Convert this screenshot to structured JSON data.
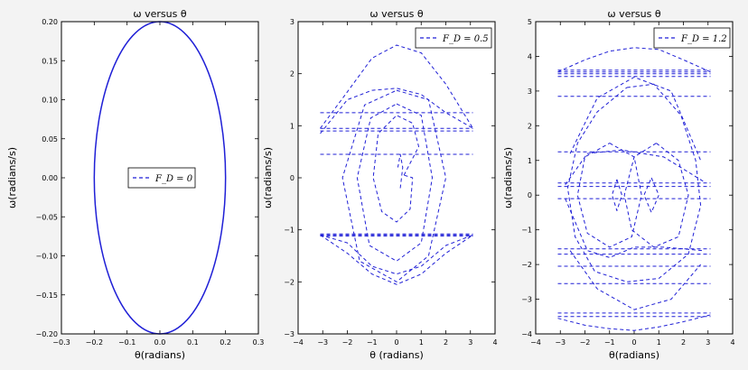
{
  "chart_data": [
    {
      "type": "line",
      "title": "ω versus θ",
      "xlabel": "θ(radians)",
      "ylabel": "ω(radians/s)",
      "xlim": [
        -0.3,
        0.3
      ],
      "ylim": [
        -0.2,
        0.2
      ],
      "xticks": [
        -0.3,
        -0.2,
        -0.1,
        0.0,
        0.1,
        0.2,
        0.3
      ],
      "xtick_labels": [
        "−0.3",
        "−0.2",
        "−0.1",
        "0.0",
        "0.1",
        "0.2",
        "0.3"
      ],
      "yticks": [
        -0.2,
        -0.15,
        -0.1,
        -0.05,
        0.0,
        0.05,
        0.1,
        0.15,
        0.2
      ],
      "ytick_labels": [
        "−0.20",
        "−0.15",
        "−0.10",
        "−0.05",
        "0.00",
        "0.05",
        "0.10",
        "0.15",
        "0.20"
      ],
      "legend": "F_D = 0",
      "legend_position": "center",
      "series": [
        {
          "name": "F_D = 0",
          "style": "solid",
          "shape": "ellipse",
          "x_amplitude": 0.2,
          "y_amplitude": 0.2
        }
      ]
    },
    {
      "type": "line",
      "title": "ω versus θ",
      "xlabel": "θ (radians)",
      "ylabel": "ω(radians/s)",
      "xlim": [
        -4,
        4
      ],
      "ylim": [
        -3,
        3
      ],
      "xticks": [
        -4,
        -3,
        -2,
        -1,
        0,
        1,
        2,
        3,
        4
      ],
      "xtick_labels": [
        "−4",
        "−3",
        "−2",
        "−1",
        "0",
        "1",
        "2",
        "3",
        "4"
      ],
      "yticks": [
        -3,
        -2,
        -1,
        0,
        1,
        2,
        3
      ],
      "ytick_labels": [
        "−3",
        "−2",
        "−1",
        "0",
        "1",
        "2",
        "3"
      ],
      "legend": "F_D = 0.5",
      "legend_position": "top-right",
      "series": [
        {
          "name": "F_D = 0.5",
          "style": "dashed",
          "segments": [
            [
              [
                0.15,
                -0.2
              ],
              [
                0.25,
                0.2
              ],
              [
                0.15,
                0.45
              ],
              [
                0.05,
                0.2
              ]
            ],
            [
              [
                0.3,
                0.05
              ],
              [
                0.9,
                0.6
              ],
              [
                0.65,
                1.05
              ],
              [
                0,
                1.2
              ],
              [
                -0.75,
                0.85
              ],
              [
                -0.95,
                0
              ],
              [
                -0.6,
                -0.65
              ],
              [
                0,
                -0.85
              ],
              [
                0.55,
                -0.6
              ],
              [
                0.65,
                0
              ],
              [
                0.3,
                0.05
              ]
            ],
            [
              [
                0,
                1.42
              ],
              [
                1,
                1.2
              ],
              [
                1.45,
                0
              ],
              [
                1.0,
                -1.25
              ],
              [
                0,
                -1.6
              ],
              [
                -1.1,
                -1.3
              ],
              [
                -1.6,
                0
              ],
              [
                -1.05,
                1.15
              ],
              [
                0,
                1.42
              ]
            ],
            [
              [
                0,
                1.68
              ],
              [
                1.3,
                1.5
              ],
              [
                2,
                0
              ],
              [
                1.3,
                -1.5
              ],
              [
                0,
                -2.0
              ],
              [
                -1.5,
                -1.6
              ],
              [
                -2.2,
                0
              ],
              [
                -1.3,
                1.4
              ],
              [
                0,
                1.68
              ]
            ],
            [
              [
                -3.1,
                0.85
              ],
              [
                -2,
                1.5
              ],
              [
                -1,
                1.68
              ],
              [
                0,
                1.72
              ],
              [
                1,
                1.6
              ],
              [
                2,
                1.25
              ],
              [
                3.1,
                0.95
              ]
            ],
            [
              [
                -3.1,
                0.95
              ],
              [
                -2,
                1.65
              ],
              [
                -1,
                2.3
              ],
              [
                0,
                2.55
              ],
              [
                1,
                2.4
              ],
              [
                2,
                1.8
              ],
              [
                3.1,
                0.95
              ]
            ],
            [
              [
                -3.1,
                -1.1
              ],
              [
                -2,
                -1.45
              ],
              [
                -1,
                -1.85
              ],
              [
                0,
                -2.05
              ],
              [
                1,
                -1.85
              ],
              [
                2,
                -1.45
              ],
              [
                3.1,
                -1.1
              ]
            ],
            [
              [
                -3.1,
                -1.1
              ],
              [
                -2,
                -1.25
              ],
              [
                -1,
                -1.7
              ],
              [
                0,
                -1.85
              ],
              [
                1,
                -1.7
              ],
              [
                2,
                -1.3
              ],
              [
                3.1,
                -1.1
              ]
            ],
            [
              [
                -3.1,
                1.25
              ],
              [
                3.1,
                1.25
              ]
            ],
            [
              [
                -3.1,
                0.95
              ],
              [
                3.1,
                0.95
              ]
            ],
            [
              [
                -3.1,
                0.9
              ],
              [
                3.1,
                0.9
              ]
            ],
            [
              [
                -3.1,
                0.45
              ],
              [
                3.1,
                0.45
              ]
            ],
            [
              [
                -3.1,
                -1.08
              ],
              [
                3.1,
                -1.08
              ]
            ],
            [
              [
                -3.1,
                -1.1
              ],
              [
                3.1,
                -1.1
              ]
            ],
            [
              [
                -3.1,
                -1.12
              ],
              [
                3.1,
                -1.12
              ]
            ]
          ]
        }
      ]
    },
    {
      "type": "line",
      "title": "ω versus θ",
      "xlabel": "θ(radians)",
      "ylabel": "ω(radians/s)",
      "xlim": [
        -4,
        4
      ],
      "ylim": [
        -4,
        5
      ],
      "xticks": [
        -4,
        -3,
        -2,
        -1,
        0,
        1,
        2,
        3,
        4
      ],
      "xtick_labels": [
        "−4",
        "−3",
        "−2",
        "−1",
        "0",
        "1",
        "2",
        "3",
        "4"
      ],
      "yticks": [
        -4,
        -3,
        -2,
        -1,
        0,
        1,
        2,
        3,
        4,
        5
      ],
      "ytick_labels": [
        "−4",
        "−3",
        "−2",
        "−1",
        "0",
        "1",
        "2",
        "3",
        "4",
        "5"
      ],
      "legend": "F_D = 1.2",
      "legend_position": "top-right",
      "series": [
        {
          "name": "F_D = 1.2",
          "style": "dashed",
          "segments": [
            [
              [
                -3.1,
                3.55
              ],
              [
                -2,
                3.9
              ],
              [
                -1,
                4.15
              ],
              [
                0,
                4.25
              ],
              [
                1,
                4.2
              ],
              [
                2,
                3.9
              ],
              [
                3.1,
                3.55
              ]
            ],
            [
              [
                -3.1,
                3.5
              ],
              [
                3.1,
                3.5
              ]
            ],
            [
              [
                -3.1,
                3.55
              ],
              [
                3.1,
                3.55
              ]
            ],
            [
              [
                -3.1,
                3.6
              ],
              [
                3.1,
                3.6
              ]
            ],
            [
              [
                -3.1,
                3.42
              ],
              [
                3.1,
                3.42
              ]
            ],
            [
              [
                -3.1,
                2.85
              ],
              [
                3.1,
                2.85
              ]
            ],
            [
              [
                -3.1,
                1.25
              ],
              [
                3.1,
                1.25
              ]
            ],
            [
              [
                -3.1,
                0.35
              ],
              [
                3.1,
                0.35
              ]
            ],
            [
              [
                -3.1,
                0.25
              ],
              [
                3.1,
                0.25
              ]
            ],
            [
              [
                -3.1,
                -0.1
              ],
              [
                3.1,
                -0.1
              ]
            ],
            [
              [
                -3.1,
                -1.55
              ],
              [
                3.1,
                -1.55
              ]
            ],
            [
              [
                -3.1,
                -1.7
              ],
              [
                3.1,
                -1.7
              ]
            ],
            [
              [
                -3.1,
                -2.05
              ],
              [
                3.1,
                -2.05
              ]
            ],
            [
              [
                -3.1,
                -2.55
              ],
              [
                3.1,
                -2.55
              ]
            ],
            [
              [
                -3.1,
                -3.4
              ],
              [
                3.1,
                -3.4
              ]
            ],
            [
              [
                -3.1,
                -3.5
              ],
              [
                3.1,
                -3.5
              ]
            ],
            [
              [
                -3.1,
                -3.55
              ],
              [
                -2,
                -3.75
              ],
              [
                -1,
                -3.85
              ],
              [
                0,
                -3.9
              ],
              [
                1,
                -3.8
              ],
              [
                2,
                -3.65
              ],
              [
                3.1,
                -3.45
              ]
            ],
            [
              [
                -0.7,
                0.45
              ],
              [
                -0.5,
                0
              ],
              [
                -0.7,
                -0.45
              ],
              [
                -0.9,
                0
              ],
              [
                -0.7,
                0.45
              ]
            ],
            [
              [
                0.7,
                0.5
              ],
              [
                1.0,
                0
              ],
              [
                0.7,
                -0.5
              ],
              [
                0.4,
                0
              ],
              [
                0.7,
                0.5
              ]
            ],
            [
              [
                -1.0,
                1.5
              ],
              [
                0,
                1.1
              ],
              [
                0.3,
                0
              ],
              [
                -0.1,
                -1.2
              ],
              [
                -1.0,
                -1.5
              ],
              [
                -1.9,
                -1.1
              ],
              [
                -2.3,
                0
              ],
              [
                -2.0,
                1.1
              ],
              [
                -1.0,
                1.5
              ]
            ],
            [
              [
                0.9,
                1.5
              ],
              [
                1.8,
                1.0
              ],
              [
                2.2,
                0
              ],
              [
                1.8,
                -1.2
              ],
              [
                0.8,
                -1.5
              ],
              [
                -0.1,
                -1.0
              ],
              [
                -0.4,
                0
              ],
              [
                0,
                1.1
              ],
              [
                0.9,
                1.5
              ]
            ],
            [
              [
                -0.3,
                3.1
              ],
              [
                0.8,
                3.2
              ],
              [
                1.9,
                2.3
              ],
              [
                2.5,
                1.0
              ],
              [
                2.7,
                -0.3
              ],
              [
                2.2,
                -1.7
              ],
              [
                1.0,
                -2.4
              ],
              [
                -0.3,
                -2.5
              ],
              [
                -1.6,
                -2.2
              ],
              [
                -2.4,
                -1.2
              ],
              [
                -2.7,
                0.2
              ],
              [
                -2.3,
                1.5
              ],
              [
                -1.5,
                2.4
              ],
              [
                -0.3,
                3.1
              ]
            ],
            [
              [
                -2.6,
                1.2
              ],
              [
                -1.5,
                2.8
              ],
              [
                0,
                3.4
              ],
              [
                1.5,
                3.0
              ],
              [
                2.7,
                1.0
              ]
            ],
            [
              [
                -2.6,
                -1.6
              ],
              [
                -1.5,
                -2.7
              ],
              [
                0,
                -3.3
              ],
              [
                1.5,
                -3.0
              ],
              [
                2.7,
                -2.0
              ]
            ],
            [
              [
                -2.8,
                -0.1
              ],
              [
                -1.9,
                -1.6
              ],
              [
                -1.0,
                -1.8
              ],
              [
                0,
                -1.5
              ],
              [
                1.2,
                -1.5
              ],
              [
                2.8,
                -1.6
              ]
            ],
            [
              [
                -2.8,
                0.3
              ],
              [
                -1.9,
                1.2
              ],
              [
                -0.5,
                1.3
              ],
              [
                1.2,
                1.1
              ],
              [
                2.8,
                0.4
              ]
            ]
          ]
        }
      ]
    }
  ]
}
